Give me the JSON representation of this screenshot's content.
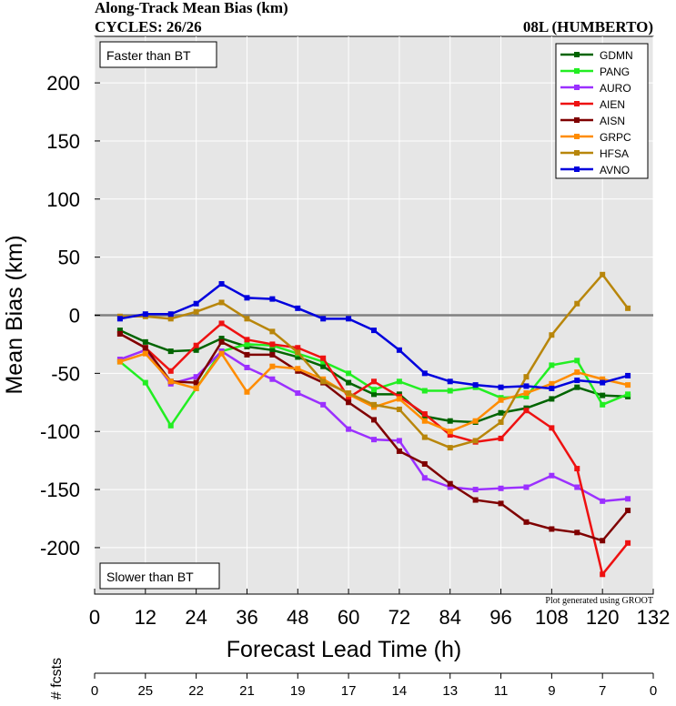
{
  "chart_data": {
    "type": "line",
    "title": "Along-Track Mean Bias (km)",
    "subtitle_left": "CYCLES: 26/26",
    "subtitle_right": "08L (HUMBERTO)",
    "xlabel": "Forecast Lead Time (h)",
    "ylabel": "Mean Bias (km)",
    "xlim": [
      0,
      132
    ],
    "ylim": [
      -240,
      240
    ],
    "xticks": [
      0,
      12,
      24,
      36,
      48,
      60,
      72,
      84,
      96,
      108,
      120,
      132
    ],
    "yticks": [
      -200,
      -150,
      -100,
      -50,
      0,
      50,
      100,
      150,
      200
    ],
    "annotation_top": "Faster than BT",
    "annotation_bottom": "Slower than BT",
    "credit": "Plot generated using GROOT",
    "legend_position": "top-right",
    "zero_line_color": "#808080",
    "plot_background": "#e6e6e6",
    "x": [
      6,
      12,
      18,
      24,
      30,
      36,
      42,
      48,
      54,
      60,
      66,
      72,
      78,
      84,
      90,
      96,
      102,
      108,
      114,
      120,
      126
    ],
    "series": [
      {
        "name": "GDMN",
        "color": "#006400",
        "values": [
          -13,
          -23,
          -31,
          -30,
          -20,
          -27,
          -30,
          -36,
          -44,
          -58,
          -68,
          -68,
          -87,
          -91,
          -92,
          -84,
          -80,
          -72,
          -62,
          -69,
          -70
        ]
      },
      {
        "name": "PANG",
        "color": "#22ee22",
        "values": [
          -40,
          -58,
          -95,
          -63,
          -31,
          -25,
          -26,
          -33,
          -40,
          -50,
          -64,
          -57,
          -65,
          -65,
          -62,
          -71,
          -70,
          -43,
          -39,
          -77,
          -68
        ]
      },
      {
        "name": "AURO",
        "color": "#9b30ff",
        "values": [
          -38,
          -30,
          -59,
          -53,
          -31,
          -45,
          -55,
          -67,
          -77,
          -98,
          -107,
          -108,
          -140,
          -148,
          -150,
          -149,
          -148,
          -138,
          -148,
          -160,
          -158
        ]
      },
      {
        "name": "AIEN",
        "color": "#ee1111",
        "values": [
          -16,
          -28,
          -48,
          -26,
          -7,
          -21,
          -25,
          -28,
          -37,
          -71,
          -57,
          -70,
          -85,
          -103,
          -109,
          -106,
          -82,
          -97,
          -132,
          -223,
          -196
        ]
      },
      {
        "name": "AISN",
        "color": "#7f0000",
        "values": [
          -16,
          -28,
          -57,
          -58,
          -23,
          -34,
          -34,
          -48,
          -58,
          -75,
          -90,
          -117,
          -128,
          -145,
          -159,
          -162,
          -178,
          -184,
          -187,
          -194,
          -168
        ]
      },
      {
        "name": "GRPC",
        "color": "#ff8c00",
        "values": [
          -40,
          -33,
          -57,
          -63,
          -33,
          -66,
          -44,
          -46,
          -55,
          -68,
          -79,
          -72,
          -91,
          -100,
          -91,
          -73,
          -67,
          -59,
          -49,
          -55,
          -60
        ]
      },
      {
        "name": "HFSA",
        "color": "#b8860b",
        "values": [
          -1,
          -1,
          -3,
          3,
          11,
          -3,
          -14,
          -32,
          -57,
          -67,
          -77,
          -81,
          -105,
          -114,
          -108,
          -92,
          -53,
          -17,
          10,
          35,
          6
        ]
      },
      {
        "name": "AVNO",
        "color": "#0000dd",
        "values": [
          -3,
          1,
          1,
          10,
          27,
          15,
          14,
          6,
          -3,
          -3,
          -13,
          -30,
          -50,
          -57,
          -60,
          -62,
          -61,
          -63,
          -56,
          -58,
          -52
        ]
      }
    ],
    "fcsts_axis": {
      "label": "# fcsts",
      "x": [
        0,
        12,
        24,
        36,
        48,
        60,
        72,
        84,
        96,
        108,
        120,
        132
      ],
      "counts": [
        "0",
        "25",
        "22",
        "21",
        "19",
        "17",
        "14",
        "13",
        "11",
        "9",
        "7",
        "0"
      ]
    }
  }
}
